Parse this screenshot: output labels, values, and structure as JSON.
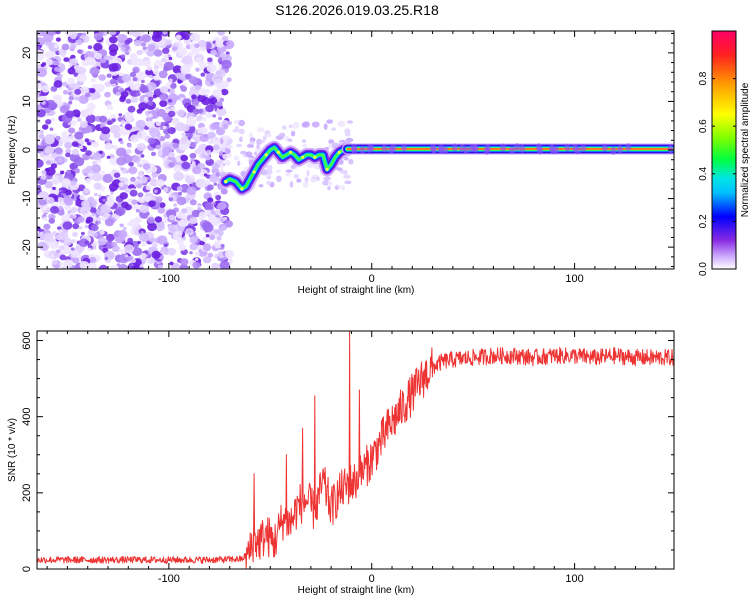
{
  "title": "S126.2026.019.03.25.R18",
  "chart_data": [
    {
      "type": "heatmap",
      "name": "spectrogram",
      "xlabel": "Height of straight line (km)",
      "ylabel": "Frequency (Hz)",
      "xlim": [
        -165,
        149
      ],
      "ylim": [
        -24.5,
        24.5
      ],
      "xticks": [
        -100,
        0,
        100
      ],
      "yticks": [
        -20,
        -10,
        0,
        10,
        20
      ],
      "noise_region_x": [
        -165,
        -70
      ],
      "ridge": {
        "x": [
          -72,
          -70,
          -67,
          -64,
          -62,
          -60,
          -58,
          -56,
          -54,
          -52,
          -50,
          -48,
          -46,
          -44,
          -42,
          -40,
          -38,
          -36,
          -34,
          -32,
          -30,
          -28,
          -26,
          -24,
          -22,
          -20,
          -18,
          -16,
          -14,
          -12
        ],
        "freq": [
          -6.5,
          -6,
          -6.5,
          -8,
          -7.5,
          -6,
          -4.5,
          -3,
          -2,
          -1,
          0,
          0.5,
          -0.5,
          -1.5,
          -1,
          -0.5,
          -1,
          -2,
          -1.5,
          -1,
          -1,
          -1.5,
          -1,
          -1,
          -4,
          -3,
          -1.5,
          -0.5,
          0,
          0.2
        ]
      },
      "carrier": {
        "x_start": -12,
        "x_end": 148,
        "freq": 0.2
      },
      "colorbar": {
        "label": "Normalized spectral amplitude",
        "ticks": [
          0.0,
          0.2,
          0.4,
          0.6,
          0.8
        ],
        "range": [
          0,
          1
        ]
      }
    },
    {
      "type": "line",
      "name": "snr",
      "xlabel": "Height of straight line (km)",
      "ylabel": "SNR (10 * v/v)",
      "xlim": [
        -165,
        149
      ],
      "ylim": [
        0,
        625
      ],
      "xticks": [
        -100,
        0,
        100
      ],
      "yticks": [
        0,
        200,
        400,
        600
      ],
      "color": "#ee3333",
      "x": [
        -165,
        -140,
        -110,
        -80,
        -64,
        -60,
        -58,
        -56,
        -52,
        -48,
        -44,
        -40,
        -36,
        -32,
        -28,
        -24,
        -20,
        -16,
        -12,
        -8,
        -4,
        0,
        4,
        8,
        12,
        16,
        20,
        25,
        30,
        35,
        40,
        50,
        60,
        70,
        80,
        90,
        100,
        110,
        120,
        130,
        140,
        149
      ],
      "y": [
        24,
        24,
        24,
        24,
        26,
        45,
        80,
        70,
        90,
        70,
        130,
        120,
        170,
        180,
        150,
        230,
        160,
        200,
        220,
        230,
        260,
        290,
        330,
        370,
        400,
        430,
        460,
        500,
        530,
        545,
        550,
        555,
        560,
        560,
        555,
        560,
        560,
        555,
        560,
        555,
        555,
        555
      ],
      "spikes": [
        {
          "x": -58,
          "y": 250
        },
        {
          "x": -42,
          "y": 300
        },
        {
          "x": -34,
          "y": 370
        },
        {
          "x": -28,
          "y": 455
        },
        {
          "x": -11,
          "y": 625
        },
        {
          "x": -6,
          "y": 470
        }
      ],
      "noise_amp": [
        {
          "x_from": -165,
          "x_to": -62,
          "amp": 9
        },
        {
          "x_from": -62,
          "x_to": 30,
          "amp": 55
        },
        {
          "x_from": 30,
          "x_to": 149,
          "amp": 22
        }
      ]
    }
  ]
}
